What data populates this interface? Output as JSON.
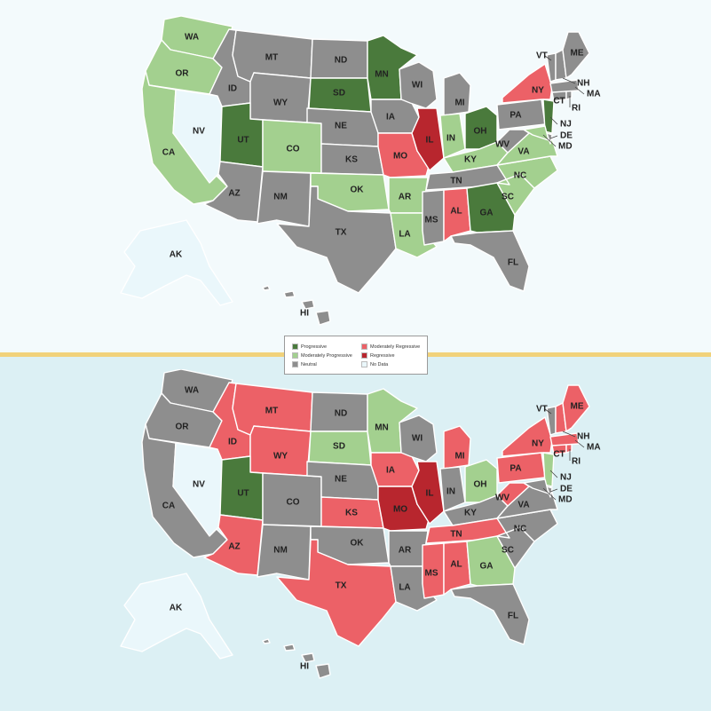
{
  "colors": {
    "Progressive": "#4a7a3c",
    "Moderately Progressive": "#a3d08f",
    "Neutral": "#8e8e8e",
    "Moderately Regressive": "#ec6167",
    "Regressive": "#b8262e",
    "No Data": "#eaf7fb"
  },
  "legend": [
    {
      "label": "Progressive",
      "category": "Progressive"
    },
    {
      "label": "Moderately Regressive",
      "category": "Moderately Regressive"
    },
    {
      "label": "Moderately Progressive",
      "category": "Moderately Progressive"
    },
    {
      "label": "Regressive",
      "category": "Regressive"
    },
    {
      "label": "Neutral",
      "category": "Neutral"
    },
    {
      "label": "No Data",
      "category": "No Data"
    }
  ],
  "maps": [
    {
      "name": "top",
      "states": {
        "WA": "Moderately Progressive",
        "OR": "Moderately Progressive",
        "CA": "Moderately Progressive",
        "ID": "Neutral",
        "NV": "No Data",
        "UT": "Progressive",
        "AZ": "Neutral",
        "MT": "Neutral",
        "WY": "Neutral",
        "CO": "Moderately Progressive",
        "NM": "Neutral",
        "ND": "Neutral",
        "SD": "Progressive",
        "NE": "Neutral",
        "KS": "Neutral",
        "OK": "Moderately Progressive",
        "TX": "Neutral",
        "MN": "Progressive",
        "IA": "Neutral",
        "MO": "Moderately Regressive",
        "AR": "Moderately Progressive",
        "LA": "Moderately Progressive",
        "WI": "Neutral",
        "IL": "Regressive",
        "MI": "Neutral",
        "IN": "Moderately Progressive",
        "OH": "Progressive",
        "KY": "Moderately Progressive",
        "TN": "Neutral",
        "MS": "Neutral",
        "AL": "Moderately Regressive",
        "GA": "Progressive",
        "FL": "Neutral",
        "SC": "Moderately Progressive",
        "NC": "Moderately Progressive",
        "VA": "Moderately Progressive",
        "WV": "Neutral",
        "PA": "Neutral",
        "NY": "Moderately Regressive",
        "NJ": "Progressive",
        "DE": "Neutral",
        "MD": "Moderately Progressive",
        "CT": "Neutral",
        "RI": "Neutral",
        "MA": "Neutral",
        "VT": "Neutral",
        "NH": "Neutral",
        "ME": "Neutral",
        "AK": "No Data",
        "HI": "Neutral"
      }
    },
    {
      "name": "bottom",
      "states": {
        "WA": "Neutral",
        "OR": "Neutral",
        "CA": "Neutral",
        "ID": "Moderately Regressive",
        "NV": "No Data",
        "UT": "Progressive",
        "AZ": "Moderately Regressive",
        "MT": "Moderately Regressive",
        "WY": "Moderately Regressive",
        "CO": "Neutral",
        "NM": "Neutral",
        "ND": "Neutral",
        "SD": "Moderately Progressive",
        "NE": "Neutral",
        "KS": "Moderately Regressive",
        "OK": "Neutral",
        "TX": "Moderately Regressive",
        "MN": "Moderately Progressive",
        "IA": "Moderately Regressive",
        "MO": "Regressive",
        "AR": "Neutral",
        "LA": "Neutral",
        "WI": "Neutral",
        "IL": "Regressive",
        "MI": "Moderately Regressive",
        "IN": "Neutral",
        "OH": "Moderately Progressive",
        "KY": "Neutral",
        "TN": "Moderately Regressive",
        "MS": "Moderately Regressive",
        "AL": "Moderately Regressive",
        "GA": "Moderately Progressive",
        "FL": "Neutral",
        "SC": "Neutral",
        "NC": "Neutral",
        "VA": "Neutral",
        "WV": "Moderately Regressive",
        "PA": "Moderately Regressive",
        "NY": "Moderately Regressive",
        "NJ": "Moderately Progressive",
        "DE": "Neutral",
        "MD": "Neutral",
        "CT": "Moderately Regressive",
        "RI": "Moderately Regressive",
        "MA": "Moderately Regressive",
        "VT": "Neutral",
        "NH": "Moderately Regressive",
        "ME": "Moderately Regressive",
        "AK": "No Data",
        "HI": "Neutral"
      }
    }
  ]
}
